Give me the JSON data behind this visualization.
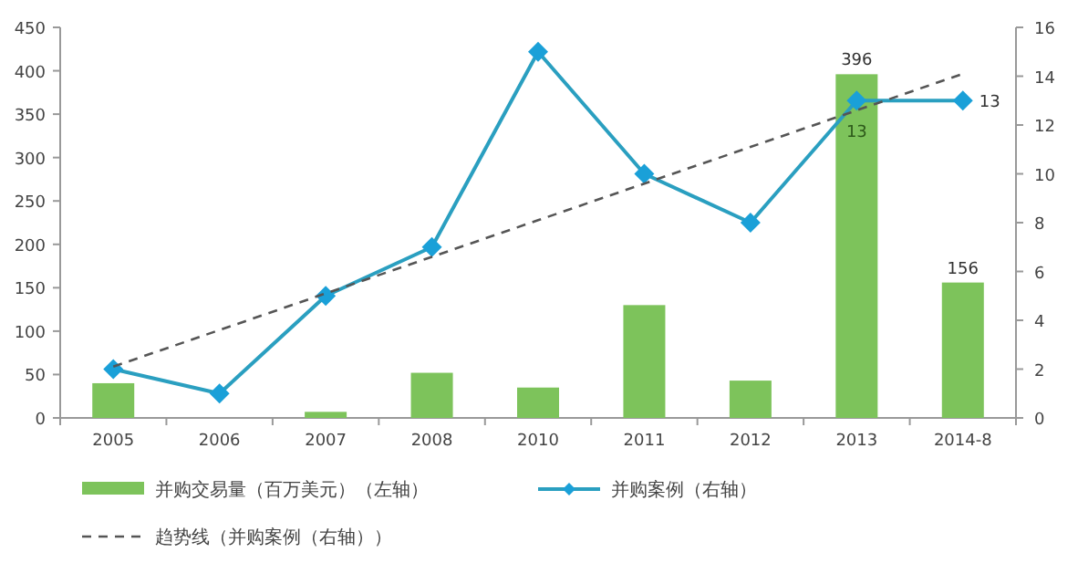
{
  "chart_data": {
    "type": "bar",
    "categories": [
      "2005",
      "2006",
      "2007",
      "2008",
      "2010",
      "2011",
      "2012",
      "2013",
      "2014-8"
    ],
    "ylim": [
      0,
      450
    ],
    "yticks": [
      0,
      50,
      100,
      150,
      200,
      250,
      300,
      350,
      400,
      450
    ],
    "y2lim": [
      0,
      16
    ],
    "y2ticks": [
      0,
      2,
      4,
      6,
      8,
      10,
      12,
      14,
      16
    ],
    "grid": false,
    "legend": "bottom",
    "series": [
      {
        "name": "并购交易量（百万美元）（左轴）",
        "color": "#7dc35b",
        "values": [
          40,
          0,
          7,
          52,
          35,
          130,
          43,
          396,
          156
        ],
        "value_labels": [
          null,
          null,
          null,
          null,
          null,
          null,
          null,
          "396",
          "156"
        ]
      },
      {
        "name": "并购案例（右轴）",
        "type": "line",
        "axis": "y2",
        "color": "#2a9fc0",
        "marker": "diamond",
        "values": [
          2,
          1,
          5,
          7,
          15,
          10,
          8,
          13,
          13
        ],
        "value_labels": [
          null,
          null,
          null,
          null,
          null,
          null,
          null,
          "13",
          "13"
        ]
      },
      {
        "name": "趋势线（并购案例（右轴））",
        "type": "line",
        "axis": "y2",
        "color": "#555555",
        "line_style": "dashed",
        "marker": "none",
        "values": [
          2.1,
          3.6,
          5.1,
          6.6,
          8.1,
          9.6,
          11.1,
          12.6,
          14.1
        ]
      }
    ]
  }
}
